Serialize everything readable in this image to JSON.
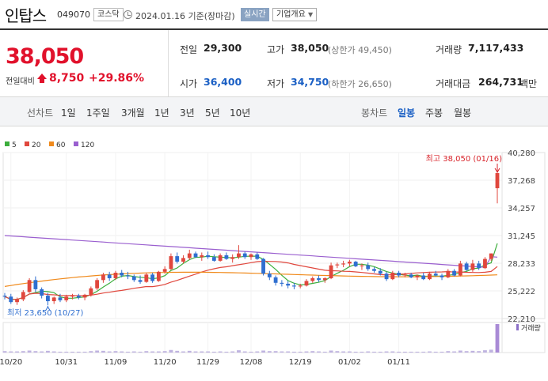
{
  "header": {
    "name": "인탑스",
    "code": "049070",
    "market": "코스닥",
    "date": "2024.01.16 기준(장마감)",
    "realtime_label": "실시간",
    "company_label": "기업개요"
  },
  "summary": {
    "price": "38,050",
    "diff_label": "전일대비",
    "diff": "8,750",
    "rate": "+29.86%",
    "prev_label": "전일",
    "prev": "29,300",
    "open_label": "시가",
    "open": "36,400",
    "high_label": "고가",
    "high": "38,050",
    "high_limit": "(상한가 49,450)",
    "low_label": "저가",
    "low": "34,750",
    "low_limit": "(하한가 26,650)",
    "volume_label": "거래량",
    "volume": "7,117,433",
    "amount_label": "거래대금",
    "amount": "264,731",
    "amount_unit": "백만"
  },
  "periods": {
    "line_label": "선차트",
    "line_items": [
      "1일",
      "1주일",
      "3개월",
      "1년",
      "3년",
      "5년",
      "10년"
    ],
    "candle_label": "봉차트",
    "candle_items": [
      "일봉",
      "주봉",
      "월봉"
    ],
    "active": "일봉"
  },
  "chart_data": {
    "type": "candlestick",
    "legend": [
      {
        "name": "5",
        "color": "#3cae3c"
      },
      {
        "name": "20",
        "color": "#e0473d"
      },
      {
        "name": "60",
        "color": "#f08a1c"
      },
      {
        "name": "120",
        "color": "#9a5fcf"
      }
    ],
    "y_ticks": [
      "40,280",
      "37,268",
      "34,257",
      "31,245",
      "28,233",
      "25,222",
      "22,210"
    ],
    "x_ticks": [
      "10/20",
      "10/31",
      "11/09",
      "11/20",
      "11/29",
      "12/08",
      "12/19",
      "01/02",
      "01/11"
    ],
    "high_annotation": "최고 38,050 (01/16)",
    "low_annotation": "최저 23,650 (10/27)",
    "volume_label": "거래량",
    "up_color": "#e0473d",
    "down_color": "#2f6fd0",
    "candles": [
      [
        24700,
        25000,
        24300,
        24600
      ],
      [
        24600,
        24900,
        23800,
        24000
      ],
      [
        24000,
        24500,
        23700,
        24300
      ],
      [
        24300,
        25300,
        24100,
        25100
      ],
      [
        25100,
        26600,
        25000,
        26400
      ],
      [
        26400,
        26800,
        25100,
        25400
      ],
      [
        25400,
        25600,
        24400,
        24700
      ],
      [
        24700,
        25000,
        23650,
        24100
      ],
      [
        24100,
        24600,
        23800,
        24500
      ],
      [
        24500,
        24900,
        24000,
        24200
      ],
      [
        24200,
        24800,
        24000,
        24600
      ],
      [
        24600,
        24900,
        24300,
        24700
      ],
      [
        24700,
        24900,
        24300,
        24500
      ],
      [
        24500,
        24900,
        24200,
        24800
      ],
      [
        24800,
        25700,
        24600,
        25500
      ],
      [
        25500,
        26600,
        25300,
        26400
      ],
      [
        26400,
        27200,
        26100,
        27000
      ],
      [
        27000,
        27300,
        26300,
        26600
      ],
      [
        26600,
        27400,
        26400,
        27200
      ],
      [
        27200,
        27500,
        26700,
        26900
      ],
      [
        26900,
        27300,
        26500,
        26800
      ],
      [
        26800,
        27000,
        26200,
        26400
      ],
      [
        26400,
        26900,
        26000,
        26200
      ],
      [
        26200,
        27200,
        26100,
        27000
      ],
      [
        27000,
        27200,
        26100,
        26300
      ],
      [
        26300,
        27400,
        26200,
        27300
      ],
      [
        27300,
        27900,
        27100,
        27600
      ],
      [
        27600,
        29300,
        27500,
        29000
      ],
      [
        29000,
        29400,
        28200,
        28400
      ],
      [
        28400,
        29100,
        28200,
        28800
      ],
      [
        28800,
        29700,
        28600,
        29300
      ],
      [
        29300,
        29500,
        28800,
        28900
      ],
      [
        28900,
        29400,
        28500,
        29100
      ],
      [
        29100,
        29500,
        28700,
        28900
      ],
      [
        28900,
        29200,
        28400,
        28500
      ],
      [
        28500,
        29300,
        28400,
        29100
      ],
      [
        29100,
        29400,
        28600,
        28700
      ],
      [
        28700,
        29200,
        28300,
        28900
      ],
      [
        28900,
        30200,
        28700,
        29300
      ],
      [
        29300,
        29500,
        28700,
        28900
      ],
      [
        28900,
        29300,
        28600,
        29200
      ],
      [
        29200,
        29400,
        28600,
        28700
      ],
      [
        28700,
        28800,
        26900,
        27100
      ],
      [
        27100,
        27400,
        26400,
        26700
      ],
      [
        26700,
        26900,
        25800,
        26100
      ],
      [
        26100,
        26400,
        25700,
        26000
      ],
      [
        26000,
        26300,
        25500,
        25800
      ],
      [
        25800,
        26100,
        25400,
        25700
      ],
      [
        25700,
        26000,
        25500,
        25800
      ],
      [
        25800,
        26500,
        25700,
        26300
      ],
      [
        26300,
        26800,
        26100,
        26600
      ],
      [
        26600,
        26900,
        26200,
        26400
      ],
      [
        26400,
        26700,
        26100,
        26600
      ],
      [
        26600,
        28300,
        26500,
        28000
      ],
      [
        28000,
        28300,
        27700,
        28100
      ],
      [
        28100,
        28500,
        27800,
        28200
      ],
      [
        28200,
        28600,
        27900,
        28400
      ],
      [
        28400,
        28500,
        27800,
        27900
      ],
      [
        27900,
        28200,
        27500,
        28000
      ],
      [
        28000,
        28300,
        27400,
        27600
      ],
      [
        27600,
        27800,
        27200,
        27400
      ],
      [
        27400,
        27700,
        26900,
        27100
      ],
      [
        27100,
        27300,
        26300,
        26500
      ],
      [
        26500,
        27400,
        26400,
        27200
      ],
      [
        27200,
        27400,
        26700,
        26900
      ],
      [
        26900,
        27200,
        26700,
        27000
      ],
      [
        27000,
        27200,
        26600,
        26700
      ],
      [
        26700,
        27000,
        26400,
        26900
      ],
      [
        26900,
        27200,
        26400,
        26500
      ],
      [
        26500,
        27300,
        26400,
        27100
      ],
      [
        27100,
        27400,
        26800,
        26900
      ],
      [
        26900,
        27100,
        26400,
        26700
      ],
      [
        26700,
        27600,
        26600,
        27400
      ],
      [
        27400,
        27600,
        26800,
        26900
      ],
      [
        26900,
        28500,
        26800,
        28200
      ],
      [
        28200,
        28400,
        27400,
        27500
      ],
      [
        27500,
        28600,
        27300,
        28200
      ],
      [
        28200,
        28500,
        27500,
        27700
      ],
      [
        27700,
        28900,
        27600,
        28700
      ],
      [
        28700,
        29300,
        28500,
        29300
      ],
      [
        36400,
        38050,
        34750,
        38050
      ]
    ],
    "volumes": [
      0.05,
      0.04,
      0.04,
      0.05,
      0.07,
      0.05,
      0.04,
      0.06,
      0.04,
      0.03,
      0.03,
      0.03,
      0.03,
      0.03,
      0.05,
      0.07,
      0.06,
      0.04,
      0.05,
      0.04,
      0.03,
      0.04,
      0.03,
      0.05,
      0.04,
      0.04,
      0.05,
      0.09,
      0.06,
      0.04,
      0.06,
      0.04,
      0.04,
      0.04,
      0.03,
      0.04,
      0.03,
      0.04,
      0.08,
      0.04,
      0.03,
      0.04,
      0.07,
      0.05,
      0.05,
      0.04,
      0.04,
      0.03,
      0.03,
      0.04,
      0.05,
      0.04,
      0.03,
      0.07,
      0.05,
      0.04,
      0.04,
      0.03,
      0.03,
      0.04,
      0.03,
      0.03,
      0.04,
      0.04,
      0.03,
      0.03,
      0.03,
      0.03,
      0.03,
      0.04,
      0.03,
      0.03,
      0.05,
      0.04,
      0.07,
      0.05,
      0.06,
      0.05,
      0.08,
      0.1,
      1.0
    ]
  }
}
